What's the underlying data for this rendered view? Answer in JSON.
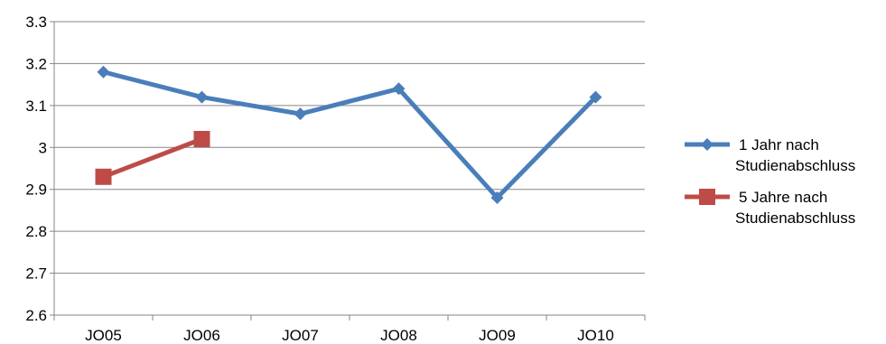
{
  "chart_data": {
    "type": "line",
    "categories": [
      "JO05",
      "JO06",
      "JO07",
      "JO08",
      "JO09",
      "JO10"
    ],
    "ylim": [
      2.6,
      3.3
    ],
    "yticks": [
      "2.6",
      "2.7",
      "2.8",
      "2.9",
      "3",
      "3.1",
      "3.2",
      "3.3"
    ],
    "grid": true,
    "legend_position": "right",
    "series": [
      {
        "name_lines": [
          "1 Jahr nach",
          "Studienabschluss"
        ],
        "color": "#4a7ebb",
        "marker": "diamond",
        "values": [
          3.18,
          3.12,
          3.08,
          3.14,
          2.88,
          3.12
        ]
      },
      {
        "name_lines": [
          "5 Jahre nach",
          "Studienabschluss"
        ],
        "color": "#be4b48",
        "marker": "square",
        "values": [
          2.93,
          3.02,
          null,
          null,
          null,
          null
        ]
      }
    ]
  }
}
